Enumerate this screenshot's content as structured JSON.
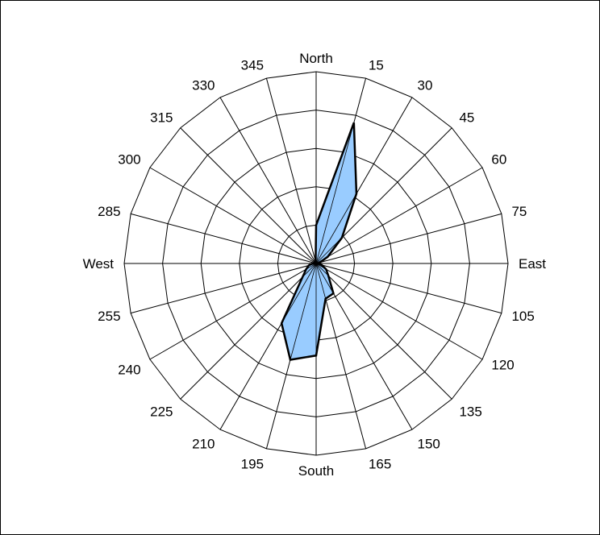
{
  "chart_data": {
    "type": "radar",
    "title": "",
    "angle_labels": [
      "North",
      "15",
      "30",
      "45",
      "60",
      "75",
      "East",
      "105",
      "120",
      "135",
      "150",
      "165",
      "South",
      "195",
      "210",
      "225",
      "240",
      "255",
      "West",
      "285",
      "300",
      "315",
      "330",
      "345"
    ],
    "angles_deg": [
      0,
      15,
      30,
      45,
      60,
      75,
      90,
      105,
      120,
      135,
      150,
      165,
      180,
      195,
      210,
      225,
      240,
      255,
      270,
      285,
      300,
      315,
      330,
      345
    ],
    "radial_range": [
      0,
      5
    ],
    "radial_gridlines": [
      1,
      2,
      3,
      4,
      5
    ],
    "radial_tick_labels_shown": false,
    "grid": true,
    "legend": "none",
    "series": [
      {
        "values": [
          1.0,
          3.8,
          2.1,
          0.95,
          0.35,
          0.1,
          0.05,
          0.15,
          0.3,
          0.45,
          0.9,
          0.95,
          2.4,
          2.6,
          1.8,
          0.5,
          0.3,
          0.2,
          0.1,
          0.05,
          0.05,
          0.05,
          0.05,
          0.05
        ],
        "fill_color": "#99ccff",
        "line_color": "#000000"
      }
    ]
  },
  "colors": {
    "grid": "#000000",
    "background": "#ffffff"
  }
}
